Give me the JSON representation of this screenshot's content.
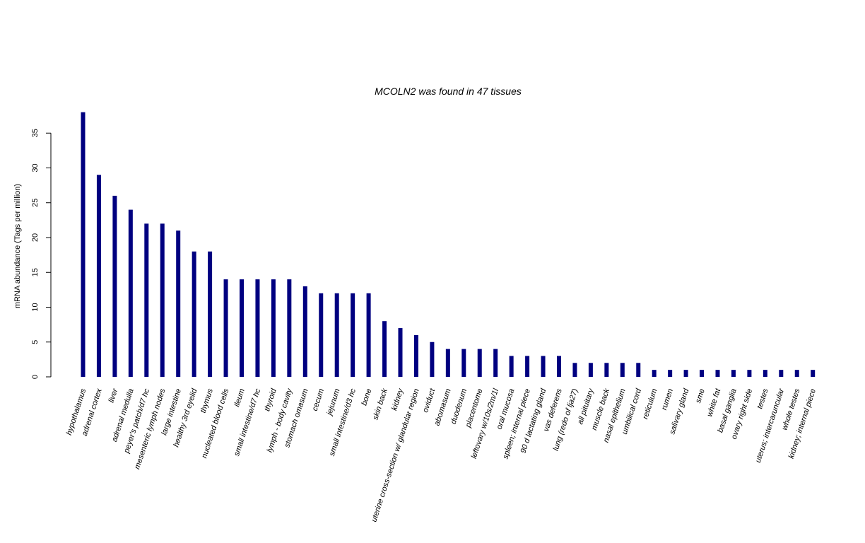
{
  "colors": {
    "bar": "#000080",
    "axis": "#000000",
    "background": "#ffffff"
  },
  "chart_data": {
    "type": "bar",
    "title": "MCOLN2  was found in  47  tissues",
    "xlabel": "",
    "ylabel": "mRNA abundance (Tags per million)",
    "ylim": [
      0,
      38
    ],
    "yticks": [
      0,
      5,
      10,
      15,
      20,
      25,
      30,
      35
    ],
    "grid": false,
    "legend": "none",
    "categories": [
      "hypothalamus",
      "adrenal cortex",
      "liver",
      "adrenal medulla",
      "peyer's patch/d7 hc",
      "mesenteric lymph nodes",
      "large intestine",
      "healthy 3rd eyelid",
      "thymus",
      "nucleated blood cells",
      "ileum",
      "small intestine/d7 hc",
      "thyroid",
      "lymph - body cavity",
      "stomach omasum",
      "cecum",
      "jejunum",
      "small intestine/d3 hc",
      "bone",
      "skin back",
      "kidney",
      "uterine cross-section w/ glandular region",
      "oviduct",
      "abomasum",
      "duodenum",
      "placentome",
      "leftovary w/10s/2m/1l",
      "oral mucosa",
      "spleen; internal piece",
      "90 d lactating gland",
      "vas deferens",
      "lung (redo of lja27)",
      "all pituitary",
      "muscle back",
      "nasal epithelium",
      "umbilical cord",
      "reticulum",
      "rumen",
      "salivary gland",
      "sme",
      "white fat",
      "basal ganglia",
      "ovary right side",
      "testes",
      "uterus; intercaruncular",
      "whole testes",
      "kidney; internal piece"
    ],
    "values": [
      38,
      29,
      26,
      24,
      22,
      22,
      21,
      18,
      18,
      14,
      14,
      14,
      14,
      14,
      13,
      12,
      12,
      12,
      12,
      8,
      7,
      6,
      5,
      4,
      4,
      4,
      4,
      3,
      3,
      3,
      3,
      2,
      2,
      2,
      2,
      2,
      1,
      1,
      1,
      1,
      1,
      1,
      1,
      1,
      1,
      1,
      1
    ]
  }
}
